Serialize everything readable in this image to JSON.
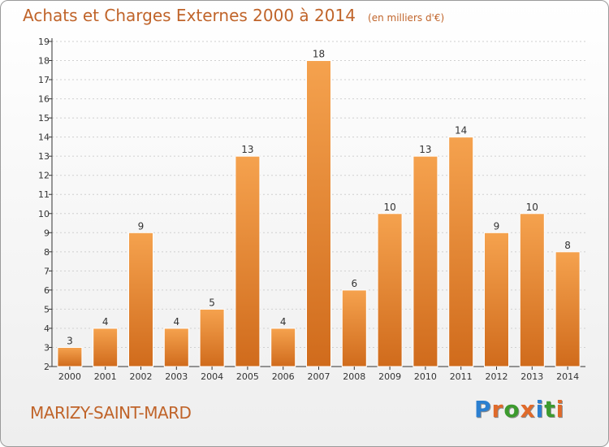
{
  "title": "Achats et Charges Externes 2000 à 2014",
  "unit_note": "(en milliers d'€)",
  "town": "MARIZY-SAINT-MARD",
  "logo": {
    "text": "Proxiti",
    "letter_colors": [
      "#2b7fd0",
      "#e06a2a",
      "#3c9a2e",
      "#e06a2a",
      "#2b7fd0",
      "#3c9a2e",
      "#e06a2a"
    ]
  },
  "colors": {
    "title": "#c0642a",
    "bar_top": "#f5a24e",
    "bar_bottom": "#d06b1c",
    "grid": "#cfcfcf",
    "axis": "#333333",
    "text": "#333333"
  },
  "chart_data": {
    "type": "bar",
    "categories": [
      "2000",
      "2001",
      "2002",
      "2003",
      "2004",
      "2005",
      "2006",
      "2007",
      "2008",
      "2009",
      "2010",
      "2011",
      "2012",
      "2013",
      "2014"
    ],
    "values": [
      3,
      4,
      9,
      4,
      5,
      13,
      4,
      18,
      6,
      10,
      13,
      14,
      9,
      10,
      8
    ],
    "ylim": [
      2,
      19
    ],
    "yticks": [
      2,
      3,
      4,
      5,
      6,
      7,
      8,
      9,
      10,
      11,
      12,
      13,
      14,
      15,
      16,
      17,
      18,
      19
    ],
    "grid": true,
    "data_labels": true
  }
}
